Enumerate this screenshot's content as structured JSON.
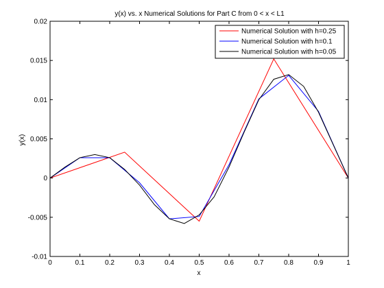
{
  "chart_data": {
    "type": "line",
    "title": "y(x) vs. x Numerical Solutions for Part C from 0 < x < L1",
    "xlabel": "x",
    "ylabel": "y(x)",
    "xlim": [
      0,
      1
    ],
    "ylim": [
      -0.01,
      0.02
    ],
    "x_ticks": [
      "0",
      "0.1",
      "0.2",
      "0.3",
      "0.4",
      "0.5",
      "0.6",
      "0.7",
      "0.8",
      "0.9",
      "1"
    ],
    "y_ticks": [
      "-0.01",
      "-0.005",
      "0",
      "0.005",
      "0.01",
      "0.015",
      "0.02"
    ],
    "grid": false,
    "legend_position": "top-right",
    "series": [
      {
        "name": "Numerical Solution with h=0.25",
        "color": "#ff0000",
        "x": [
          0,
          0.25,
          0.5,
          0.75,
          1.0
        ],
        "y": [
          0,
          0.0033,
          -0.0055,
          0.0152,
          0
        ]
      },
      {
        "name": "Numerical Solution with h=0.1",
        "color": "#0000ff",
        "x": [
          0,
          0.1,
          0.2,
          0.3,
          0.4,
          0.5,
          0.6,
          0.7,
          0.8,
          0.9,
          1.0
        ],
        "y": [
          0,
          0.0026,
          0.0026,
          -0.0006,
          -0.0052,
          -0.0049,
          0.0017,
          0.0101,
          0.0131,
          0.0085,
          0
        ]
      },
      {
        "name": "Numerical Solution with h=0.05",
        "color": "#000000",
        "x": [
          0,
          0.05,
          0.1,
          0.15,
          0.2,
          0.25,
          0.3,
          0.35,
          0.4,
          0.45,
          0.5,
          0.55,
          0.6,
          0.65,
          0.7,
          0.75,
          0.8,
          0.85,
          0.9,
          0.95,
          1.0
        ],
        "y": [
          0,
          0.0014,
          0.0026,
          0.003,
          0.0026,
          0.0011,
          -0.0009,
          -0.0034,
          -0.0052,
          -0.0058,
          -0.0047,
          -0.0024,
          0.0014,
          0.0058,
          0.01,
          0.0126,
          0.0132,
          0.0117,
          0.0084,
          0.0042,
          0
        ]
      }
    ]
  }
}
